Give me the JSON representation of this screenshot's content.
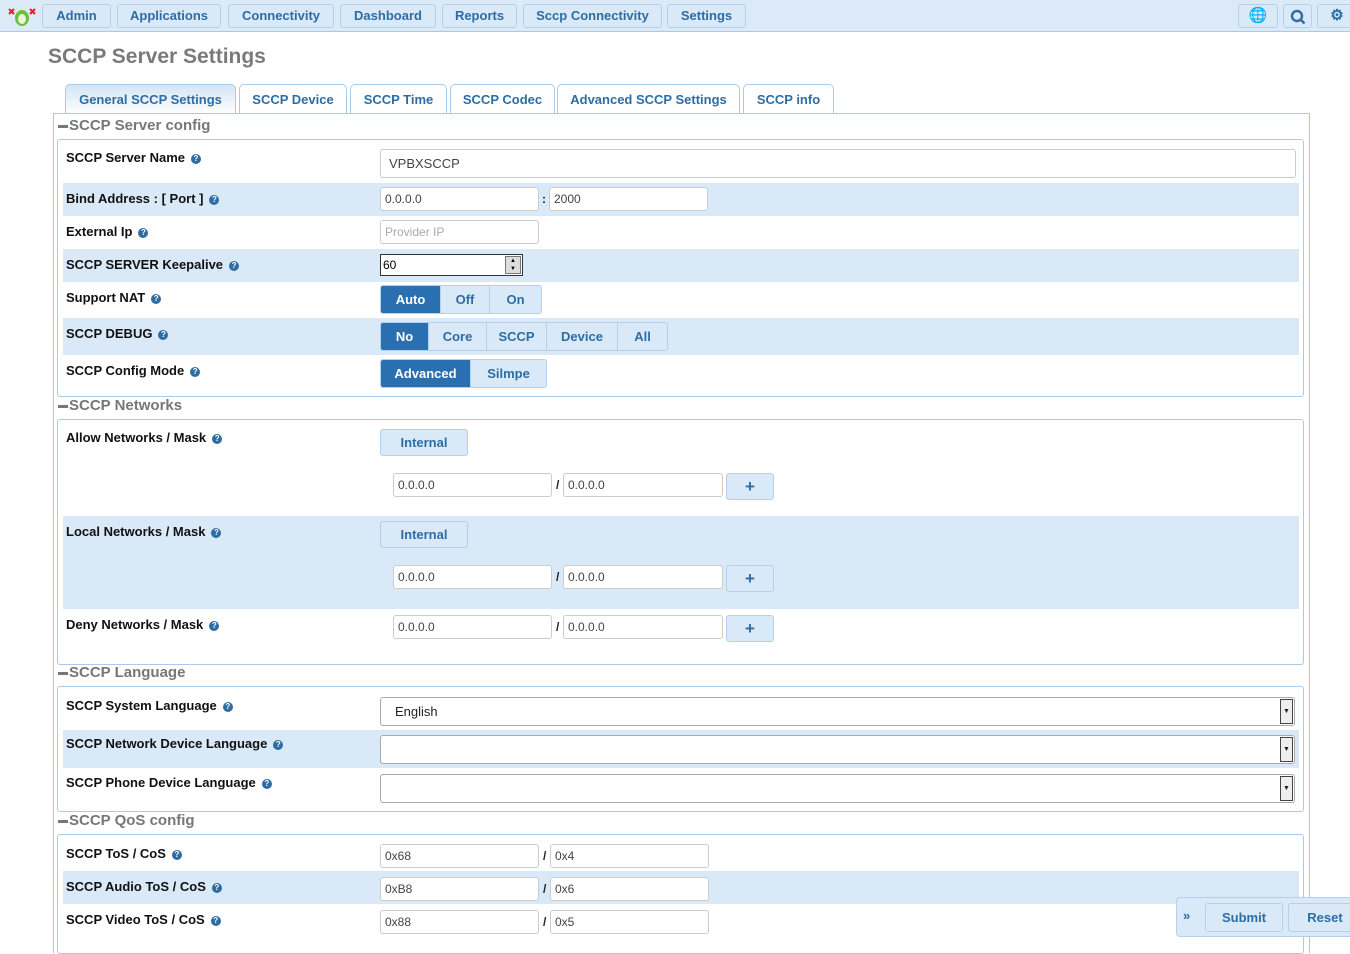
{
  "nav": {
    "items": [
      "Admin",
      "Applications",
      "Connectivity",
      "Dashboard",
      "Reports",
      "Sccp Connectivity",
      "Settings"
    ],
    "icons": [
      "language-icon",
      "search-icon",
      "gear-icon"
    ]
  },
  "page_title": "SCCP Server Settings",
  "tabs": [
    "General SCCP Settings",
    "SCCP Device",
    "SCCP Time",
    "SCCP Codec",
    "Advanced SCCP Settings",
    "SCCP info"
  ],
  "active_tab": "General SCCP Settings",
  "server_config": {
    "legend": "SCCP Server config",
    "server_name": {
      "label": "SCCP Server Name",
      "value": "VPBXSCCP"
    },
    "bind": {
      "label": "Bind Address : [ Port ]",
      "address": "0.0.0.0",
      "sep": ":",
      "port": "2000"
    },
    "external_ip": {
      "label": "External Ip",
      "placeholder": "Provider IP"
    },
    "keepalive": {
      "label": "SCCP SERVER Keepalive",
      "value": "60"
    },
    "nat": {
      "label": "Support NAT",
      "options": [
        "Auto",
        "Off",
        "On"
      ],
      "selected": "Auto"
    },
    "debug": {
      "label": "SCCP DEBUG",
      "options": [
        "No",
        "Core",
        "SCCP",
        "Device",
        "All"
      ],
      "selected": "No"
    },
    "mode": {
      "label": "SCCP Config Mode",
      "options": [
        "Advanced",
        "Silmpe"
      ],
      "selected": "Advanced"
    }
  },
  "networks": {
    "legend": "SCCP Networks",
    "allow": {
      "label": "Allow Networks / Mask",
      "internal": "Internal",
      "ip": "0.0.0.0",
      "mask": "0.0.0.0"
    },
    "local": {
      "label": "Local Networks / Mask",
      "internal": "Internal",
      "ip": "0.0.0.0",
      "mask": "0.0.0.0"
    },
    "deny": {
      "label": "Deny Networks / Mask",
      "ip": "0.0.0.0",
      "mask": "0.0.0.0"
    },
    "sep": "/",
    "add": "+"
  },
  "language": {
    "legend": "SCCP Language",
    "system": {
      "label": "SCCP System Language",
      "value": "English"
    },
    "network_device": {
      "label": "SCCP Network Device Language",
      "value": ""
    },
    "phone_device": {
      "label": "SCCP Phone Device Language",
      "value": ""
    }
  },
  "qos": {
    "legend": "SCCP QoS config",
    "sep": "/",
    "tos": {
      "label": "SCCP ToS / CoS",
      "tos": "0x68",
      "cos": "0x4"
    },
    "audio": {
      "label": "SCCP Audio ToS / CoS",
      "tos": "0xB8",
      "cos": "0x6"
    },
    "video": {
      "label": "SCCP Video ToS / CoS",
      "tos": "0x88",
      "cos": "0x5"
    }
  },
  "footer": {
    "toggle": "»",
    "submit": "Submit",
    "reset": "Reset"
  },
  "colors": {
    "accent": "#2a6fb0",
    "row_alt": "#d9e9f7"
  }
}
